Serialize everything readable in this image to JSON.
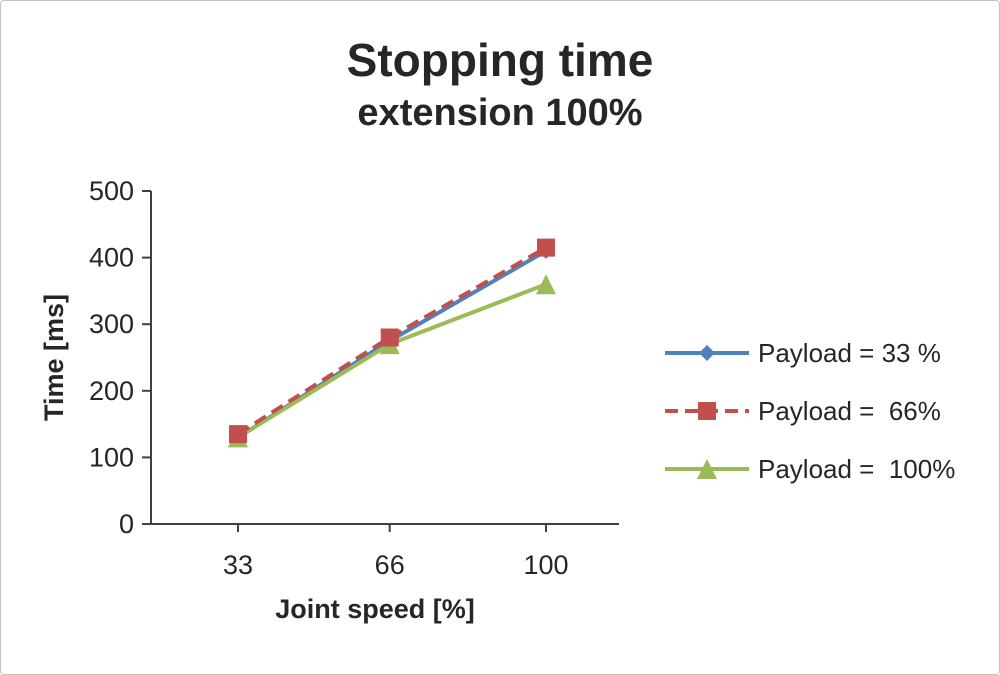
{
  "title": "Stopping time",
  "subtitle": "extension 100%",
  "chart_data": {
    "type": "line",
    "title": "Stopping time",
    "subtitle": "extension 100%",
    "x": [
      33,
      66,
      100
    ],
    "xlabel": "Joint speed [%]",
    "ylabel": "Time [ms]",
    "ylim": [
      0,
      500
    ],
    "yticks": [
      0,
      100,
      200,
      300,
      400,
      500
    ],
    "xticks": [
      33,
      66,
      100
    ],
    "grid": false,
    "legend_position": "right",
    "axis_color": "#404040",
    "series": [
      {
        "name": "Payload = 33 %",
        "values": [
          130,
          275,
          410
        ],
        "color": "#4f81bd",
        "marker": "diamond",
        "dash": "solid"
      },
      {
        "name": "Payload =  66%",
        "values": [
          135,
          280,
          415
        ],
        "color": "#c0504d",
        "marker": "square",
        "dash": "dashed"
      },
      {
        "name": "Payload =  100%",
        "values": [
          130,
          270,
          360
        ],
        "color": "#9bbb59",
        "marker": "triangle",
        "dash": "solid"
      }
    ]
  }
}
